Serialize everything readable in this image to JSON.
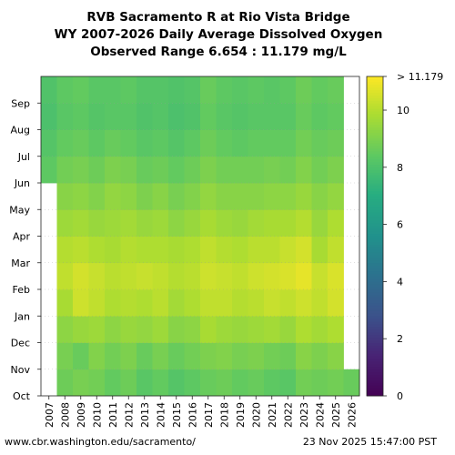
{
  "title_lines": [
    "RVB Sacramento R at Rio Vista Bridge",
    "WY 2007-2026 Daily Average Dissolved Oxygen",
    "Observed Range 6.654 : 11.179 mg/L"
  ],
  "footer": {
    "url": "www.cbr.washington.edu/sacramento/",
    "timestamp": "23 Nov 2025 15:47:00 PST"
  },
  "chart_data": {
    "type": "heatmap",
    "title": "RVB Sacramento R at Rio Vista Bridge WY 2007-2026 Daily Average Dissolved Oxygen Observed Range 6.654 : 11.179 mg/L",
    "x_categories": [
      "2007",
      "2008",
      "2009",
      "2010",
      "2011",
      "2012",
      "2013",
      "2014",
      "2015",
      "2016",
      "2017",
      "2018",
      "2019",
      "2020",
      "2021",
      "2022",
      "2023",
      "2024",
      "2025",
      "2026"
    ],
    "y_categories": [
      "Oct",
      "Nov",
      "Dec",
      "Jan",
      "Feb",
      "Mar",
      "Apr",
      "May",
      "Jun",
      "Jul",
      "Aug",
      "Sep"
    ],
    "colorbar": {
      "min": 0,
      "max": 11.179,
      "ticks": [
        0,
        2,
        4,
        6,
        8,
        10
      ],
      "max_label": "> 11.179",
      "colormap": "viridis"
    },
    "values": [
      [
        null,
        null,
        null,
        null,
        null,
        null,
        null,
        null,
        8.4,
        8.2,
        8.0,
        8.1
      ],
      [
        8.7,
        8.9,
        9.3,
        9.8,
        10.2,
        10.0,
        9.6,
        9.2,
        8.8,
        8.5,
        8.3,
        8.4
      ],
      [
        8.9,
        8.6,
        9.5,
        10.4,
        10.5,
        10.1,
        9.7,
        9.3,
        8.9,
        8.6,
        8.4,
        8.5
      ],
      [
        8.8,
        9.1,
        9.6,
        10.2,
        10.3,
        9.9,
        9.5,
        9.1,
        8.7,
        8.4,
        8.2,
        8.3
      ],
      [
        8.5,
        8.8,
        9.3,
        9.9,
        10.1,
        9.8,
        9.6,
        9.4,
        9.0,
        8.6,
        8.3,
        8.3
      ],
      [
        8.7,
        9.0,
        9.5,
        10.0,
        10.2,
        10.0,
        9.7,
        9.3,
        8.9,
        8.5,
        8.3,
        8.4
      ],
      [
        8.3,
        8.6,
        9.4,
        9.9,
        10.3,
        9.9,
        9.5,
        9.0,
        8.6,
        8.3,
        8.1,
        8.2
      ],
      [
        8.5,
        8.9,
        9.6,
        10.1,
        10.2,
        9.9,
        9.6,
        9.2,
        8.7,
        8.4,
        8.2,
        8.2
      ],
      [
        8.2,
        8.6,
        9.2,
        9.7,
        10.0,
        9.8,
        9.3,
        8.9,
        8.5,
        8.2,
        8.0,
        8.1
      ],
      [
        8.4,
        8.8,
        9.3,
        9.9,
        10.1,
        9.9,
        9.5,
        9.1,
        8.7,
        8.4,
        8.1,
        8.2
      ],
      [
        8.6,
        9.0,
        9.8,
        10.2,
        10.4,
        10.2,
        9.8,
        9.4,
        9.0,
        8.7,
        8.5,
        8.6
      ],
      [
        8.7,
        9.1,
        9.6,
        10.2,
        10.3,
        10.0,
        9.6,
        9.2,
        8.8,
        8.5,
        8.3,
        8.4
      ],
      [
        8.5,
        8.9,
        9.5,
        10.0,
        10.2,
        9.9,
        9.5,
        9.2,
        8.8,
        8.4,
        8.2,
        8.3
      ],
      [
        8.6,
        9.0,
        9.6,
        10.1,
        10.4,
        10.1,
        9.7,
        9.2,
        8.8,
        8.5,
        8.3,
        8.4
      ],
      [
        8.4,
        8.8,
        9.7,
        10.3,
        10.5,
        10.1,
        9.8,
        9.3,
        8.9,
        8.5,
        8.3,
        8.3
      ],
      [
        8.3,
        8.7,
        9.5,
        10.2,
        10.6,
        10.3,
        9.8,
        9.3,
        8.8,
        8.5,
        8.3,
        8.4
      ],
      [
        8.8,
        9.2,
        9.9,
        10.4,
        10.8,
        10.5,
        10.0,
        9.5,
        9.1,
        8.8,
        8.6,
        8.7
      ],
      [
        8.7,
        9.0,
        9.7,
        10.2,
        10.3,
        9.8,
        9.5,
        9.2,
        8.8,
        8.6,
        8.4,
        8.5
      ],
      [
        8.8,
        9.2,
        9.9,
        10.5,
        10.6,
        10.2,
        9.9,
        9.4,
        9.0,
        8.7,
        8.5,
        8.6
      ],
      [
        8.6,
        null,
        null,
        null,
        null,
        null,
        null,
        null,
        null,
        null,
        null,
        null
      ]
    ]
  }
}
